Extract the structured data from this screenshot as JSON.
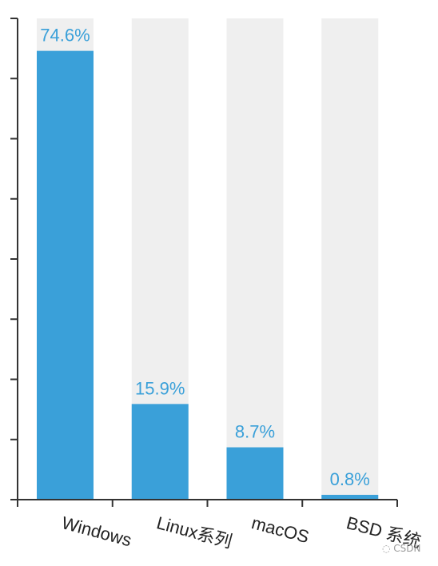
{
  "chart_data": {
    "type": "bar",
    "categories": [
      "Windows",
      "Linux系列",
      "macOS",
      "BSD 系统"
    ],
    "values": [
      74.6,
      15.9,
      8.7,
      0.8
    ],
    "value_labels": [
      "74.6%",
      "15.9%",
      "8.7%",
      "0.8%"
    ],
    "ylim": [
      0,
      80
    ],
    "background_bars": true,
    "colors": {
      "bar": "#3aa0d9",
      "background": "#efefef",
      "label": "#3aa0d9",
      "axis": "#333333",
      "tick_text": "#222222"
    }
  },
  "watermark": "CSDN"
}
